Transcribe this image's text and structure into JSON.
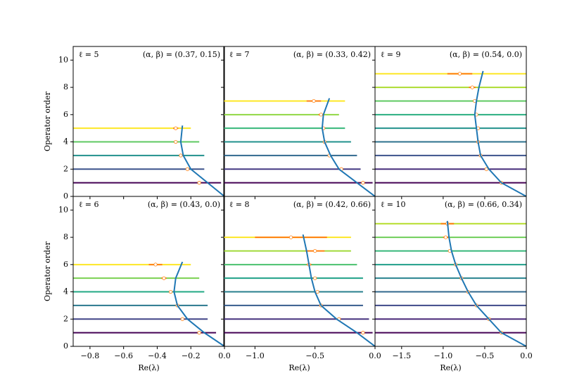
{
  "chart_data": [
    {
      "type": "ridge",
      "label_l": "ℓ = 5",
      "label_ab": "(α, β) = (0.37, 0.15)",
      "ylabel": "Operator order",
      "xlim": [
        -0.9,
        0
      ],
      "ylim": [
        0,
        11
      ],
      "yticks": [
        0,
        2,
        4,
        6,
        8,
        10
      ],
      "levels": [
        {
          "order": 1,
          "mean": -0.15,
          "error": null,
          "range": [
            -0.9,
            -0.02
          ],
          "color": "#440154"
        },
        {
          "order": 2,
          "mean": -0.22,
          "error": null,
          "range": [
            -0.9,
            -0.12
          ],
          "color": "#3b528b"
        },
        {
          "order": 3,
          "mean": -0.26,
          "error": null,
          "range": [
            -0.9,
            -0.12
          ],
          "color": "#21918c"
        },
        {
          "order": 4,
          "mean": -0.29,
          "error": null,
          "range": [
            -0.9,
            -0.15
          ],
          "color": "#5ec962"
        },
        {
          "order": 5,
          "mean": -0.29,
          "error": 0.015,
          "range": [
            -0.9,
            -0.2
          ],
          "color": "#fde725"
        }
      ],
      "curve_x": [
        0,
        -0.1,
        -0.2,
        -0.245,
        -0.26,
        -0.25
      ],
      "curve_y": [
        0,
        1,
        2,
        3,
        4,
        5.2
      ],
      "curve_color": "#1f77b4"
    },
    {
      "type": "ridge",
      "label_l": "ℓ = 7",
      "label_ab": "(α, β) = (0.33, 0.42)",
      "xlim": [
        -1.26,
        0
      ],
      "ylim": [
        0,
        11
      ],
      "levels": [
        {
          "order": 1,
          "mean": -0.1,
          "error": null,
          "range": [
            -1.26,
            -0.02
          ],
          "color": "#440154"
        },
        {
          "order": 2,
          "mean": -0.28,
          "error": null,
          "range": [
            -1.26,
            -0.12
          ],
          "color": "#443983"
        },
        {
          "order": 3,
          "mean": -0.38,
          "error": null,
          "range": [
            -1.26,
            -0.15
          ],
          "color": "#31688e"
        },
        {
          "order": 4,
          "mean": -0.42,
          "error": null,
          "range": [
            -1.26,
            -0.2
          ],
          "color": "#21918c"
        },
        {
          "order": 5,
          "mean": -0.43,
          "error": null,
          "range": [
            -1.26,
            -0.25
          ],
          "color": "#35b779"
        },
        {
          "order": 6,
          "mean": -0.45,
          "error": 0.02,
          "range": [
            -1.26,
            -0.3
          ],
          "color": "#90d743"
        },
        {
          "order": 7,
          "mean": -0.51,
          "error": 0.06,
          "range": [
            -1.26,
            -0.25
          ],
          "color": "#fde725"
        }
      ],
      "curve_x": [
        0,
        -0.15,
        -0.3,
        -0.37,
        -0.42,
        -0.44,
        -0.43,
        -0.38
      ],
      "curve_y": [
        0,
        1,
        2,
        3,
        4,
        5,
        6,
        7.2
      ],
      "curve_color": "#1f77b4"
    },
    {
      "type": "ridge",
      "label_l": "ℓ = 9",
      "label_ab": "(α, β) = (0.54, 0.0)",
      "xlim": [
        -1.82,
        0
      ],
      "ylim": [
        0,
        11
      ],
      "levels": [
        {
          "order": 1,
          "mean": -0.3,
          "error": null,
          "range": [
            -1.82,
            0
          ],
          "color": "#440154"
        },
        {
          "order": 2,
          "mean": -0.48,
          "error": null,
          "range": [
            -1.82,
            0
          ],
          "color": "#472d7b"
        },
        {
          "order": 3,
          "mean": -0.55,
          "error": null,
          "range": [
            -1.82,
            0
          ],
          "color": "#3b528b"
        },
        {
          "order": 4,
          "mean": -0.58,
          "error": null,
          "range": [
            -1.82,
            0
          ],
          "color": "#2c728e"
        },
        {
          "order": 5,
          "mean": -0.58,
          "error": null,
          "range": [
            -1.82,
            0
          ],
          "color": "#21918c"
        },
        {
          "order": 6,
          "mean": -0.6,
          "error": null,
          "range": [
            -1.82,
            0
          ],
          "color": "#28ae80"
        },
        {
          "order": 7,
          "mean": -0.62,
          "error": null,
          "range": [
            -1.82,
            0
          ],
          "color": "#5ec962"
        },
        {
          "order": 8,
          "mean": -0.65,
          "error": 0.04,
          "range": [
            -1.82,
            0
          ],
          "color": "#addc30"
        },
        {
          "order": 9,
          "mean": -0.8,
          "error": 0.15,
          "range": [
            -1.82,
            0
          ],
          "color": "#fde725"
        }
      ],
      "curve_x": [
        0,
        -0.3,
        -0.45,
        -0.55,
        -0.58,
        -0.6,
        -0.62,
        -0.6,
        -0.57,
        -0.52
      ],
      "curve_y": [
        0,
        1,
        2,
        3,
        4,
        5,
        6,
        7,
        8,
        9.2
      ],
      "curve_color": "#1f77b4"
    },
    {
      "type": "ridge",
      "label_l": "ℓ = 6",
      "label_ab": "(α, β) = (0.43, 0.0)",
      "ylabel": "Operator order",
      "xlabel": "Re(λ)",
      "xlim": [
        -0.9,
        0
      ],
      "ylim": [
        0,
        11
      ],
      "yticks": [
        0,
        2,
        4,
        6,
        8,
        10
      ],
      "xticks": [
        {
          "value": -0.8,
          "label": "−0.8"
        },
        {
          "value": -0.6,
          "label": "−0.6"
        },
        {
          "value": -0.4,
          "label": "−0.4"
        },
        {
          "value": -0.2,
          "label": "−0.2"
        },
        {
          "value": 0,
          "label": "0.0"
        }
      ],
      "levels": [
        {
          "order": 1,
          "mean": -0.15,
          "error": null,
          "range": [
            -0.9,
            -0.05
          ],
          "color": "#440154"
        },
        {
          "order": 2,
          "mean": -0.25,
          "error": null,
          "range": [
            -0.9,
            -0.1
          ],
          "color": "#414487"
        },
        {
          "order": 3,
          "mean": -0.28,
          "error": null,
          "range": [
            -0.9,
            -0.1
          ],
          "color": "#2a788e"
        },
        {
          "order": 4,
          "mean": -0.32,
          "error": null,
          "range": [
            -0.9,
            -0.12
          ],
          "color": "#22a884"
        },
        {
          "order": 5,
          "mean": -0.36,
          "error": 0.015,
          "range": [
            -0.9,
            -0.15
          ],
          "color": "#7ad151"
        },
        {
          "order": 6,
          "mean": -0.41,
          "error": 0.04,
          "range": [
            -0.9,
            -0.2
          ],
          "color": "#fde725"
        }
      ],
      "curve_x": [
        0,
        -0.12,
        -0.22,
        -0.28,
        -0.3,
        -0.29,
        -0.25
      ],
      "curve_y": [
        0,
        1,
        2,
        3,
        4,
        5,
        6.2
      ],
      "curve_color": "#1f77b4"
    },
    {
      "type": "ridge",
      "label_l": "ℓ = 8",
      "label_ab": "(α, β) = (0.42, 0.66)",
      "xlabel": "Re(λ)",
      "xlim": [
        -1.26,
        0
      ],
      "ylim": [
        0,
        11
      ],
      "xticks": [
        {
          "value": -1.0,
          "label": "−1.0"
        },
        {
          "value": -0.5,
          "label": "−0.5"
        },
        {
          "value": 0,
          "label": "0.0"
        }
      ],
      "levels": [
        {
          "order": 1,
          "mean": -0.1,
          "error": null,
          "range": [
            -1.26,
            -0.02
          ],
          "color": "#440154"
        },
        {
          "order": 2,
          "mean": -0.3,
          "error": null,
          "range": [
            -1.26,
            -0.05
          ],
          "color": "#46327e"
        },
        {
          "order": 3,
          "mean": -0.45,
          "error": null,
          "range": [
            -1.26,
            -0.1
          ],
          "color": "#365c8d"
        },
        {
          "order": 4,
          "mean": -0.48,
          "error": null,
          "range": [
            -1.26,
            -0.1
          ],
          "color": "#277f8e"
        },
        {
          "order": 5,
          "mean": -0.5,
          "error": null,
          "range": [
            -1.26,
            -0.1
          ],
          "color": "#1fa187"
        },
        {
          "order": 6,
          "mean": -0.55,
          "error": 0.02,
          "range": [
            -1.26,
            -0.15
          ],
          "color": "#4ac16d"
        },
        {
          "order": 7,
          "mean": -0.5,
          "error": 0.08,
          "range": [
            -1.26,
            -0.2
          ],
          "color": "#a0da39"
        },
        {
          "order": 8,
          "mean": -0.7,
          "error": 0.3,
          "range": [
            -1.26,
            -0.2
          ],
          "color": "#fde725"
        }
      ],
      "curve_x": [
        0,
        -0.15,
        -0.32,
        -0.45,
        -0.5,
        -0.53,
        -0.55,
        -0.57,
        -0.6
      ],
      "curve_y": [
        0,
        1,
        2,
        3,
        4,
        5,
        6,
        7,
        8.2
      ],
      "curve_color": "#1f77b4"
    },
    {
      "type": "ridge",
      "label_l": "ℓ = 10",
      "label_ab": "(α, β) = (0.66, 0.34)",
      "xlabel": "Re(λ)",
      "xlim": [
        -1.82,
        0
      ],
      "ylim": [
        0,
        11
      ],
      "xticks": [
        {
          "value": -1.5,
          "label": "−1.5"
        },
        {
          "value": -1.0,
          "label": "−1.0"
        },
        {
          "value": -0.5,
          "label": "−0.5"
        },
        {
          "value": 0,
          "label": "0.0"
        }
      ],
      "levels": [
        {
          "order": 1,
          "mean": -0.3,
          "error": null,
          "range": [
            -1.82,
            0
          ],
          "color": "#440154"
        },
        {
          "order": 2,
          "mean": -0.45,
          "error": null,
          "range": [
            -1.82,
            0
          ],
          "color": "#482878"
        },
        {
          "order": 3,
          "mean": -0.6,
          "error": null,
          "range": [
            -1.82,
            0
          ],
          "color": "#3e4989"
        },
        {
          "order": 4,
          "mean": -0.7,
          "error": null,
          "range": [
            -1.82,
            0
          ],
          "color": "#31688e"
        },
        {
          "order": 5,
          "mean": -0.78,
          "error": null,
          "range": [
            -1.82,
            0
          ],
          "color": "#26828e"
        },
        {
          "order": 6,
          "mean": -0.85,
          "error": null,
          "range": [
            -1.82,
            0
          ],
          "color": "#1f9e89"
        },
        {
          "order": 7,
          "mean": -0.92,
          "error": null,
          "range": [
            -1.82,
            0
          ],
          "color": "#35b779"
        },
        {
          "order": 8,
          "mean": -0.97,
          "error": 0.03,
          "range": [
            -1.82,
            0
          ],
          "color": "#6ece58"
        },
        {
          "order": 9,
          "mean": -0.95,
          "error": 0.08,
          "range": [
            -1.82,
            0
          ],
          "color": "#b5de2b"
        }
      ],
      "curve_x": [
        0,
        -0.3,
        -0.45,
        -0.6,
        -0.7,
        -0.78,
        -0.85,
        -0.9,
        -0.93,
        -0.95
      ],
      "curve_y": [
        0,
        1,
        2,
        3,
        4,
        5,
        6,
        7,
        8,
        9.2
      ],
      "curve_color": "#1f77b4"
    }
  ]
}
